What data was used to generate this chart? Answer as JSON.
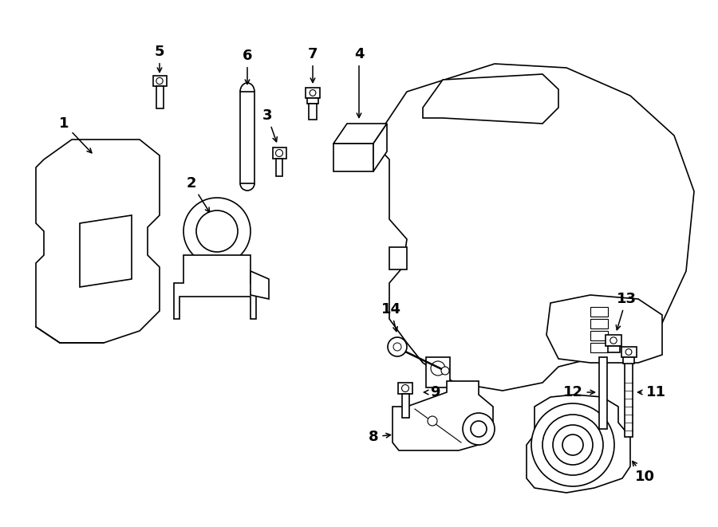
{
  "bg_color": "#ffffff",
  "line_color": "#000000",
  "figsize": [
    9.0,
    6.61
  ],
  "dpi": 100,
  "lw": 1.2
}
